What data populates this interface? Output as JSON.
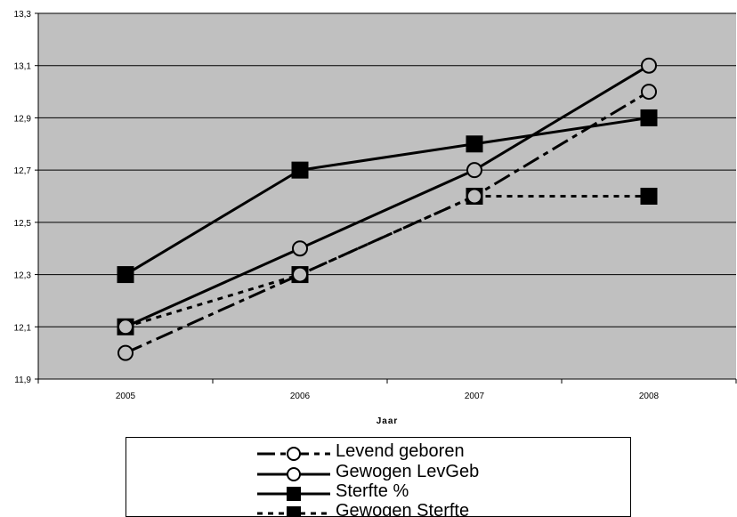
{
  "chart_data": {
    "type": "line",
    "title": "",
    "xlabel": "Jaar",
    "ylabel": "",
    "categories": [
      "2005",
      "2006",
      "2007",
      "2008"
    ],
    "ylim": [
      11.9,
      13.3
    ],
    "yticks": [
      "11,9",
      "12,1",
      "12,3",
      "12,5",
      "12,7",
      "12,9",
      "13,1",
      "13,3"
    ],
    "ytick_values": [
      11.9,
      12.1,
      12.3,
      12.5,
      12.7,
      12.9,
      13.1,
      13.3
    ],
    "grid": "horizontal",
    "plot_background": "#c0c0c0",
    "legend_position": "bottom",
    "series": [
      {
        "name": "Levend geboren",
        "values": [
          12.0,
          12.3,
          12.6,
          13.0
        ],
        "line_style": "dash",
        "marker": "open-circle",
        "color": "#000000"
      },
      {
        "name": "Gewogen LevGeb",
        "values": [
          12.1,
          12.4,
          12.7,
          13.1
        ],
        "line_style": "solid",
        "marker": "open-circle",
        "color": "#000000"
      },
      {
        "name": "Sterfte %",
        "values": [
          12.3,
          12.7,
          12.8,
          12.9
        ],
        "line_style": "solid",
        "marker": "filled-square",
        "color": "#000000"
      },
      {
        "name": "Gewogen Sterfte",
        "values": [
          12.1,
          12.3,
          12.6,
          12.6
        ],
        "line_style": "dot",
        "marker": "filled-square",
        "color": "#000000"
      }
    ]
  }
}
